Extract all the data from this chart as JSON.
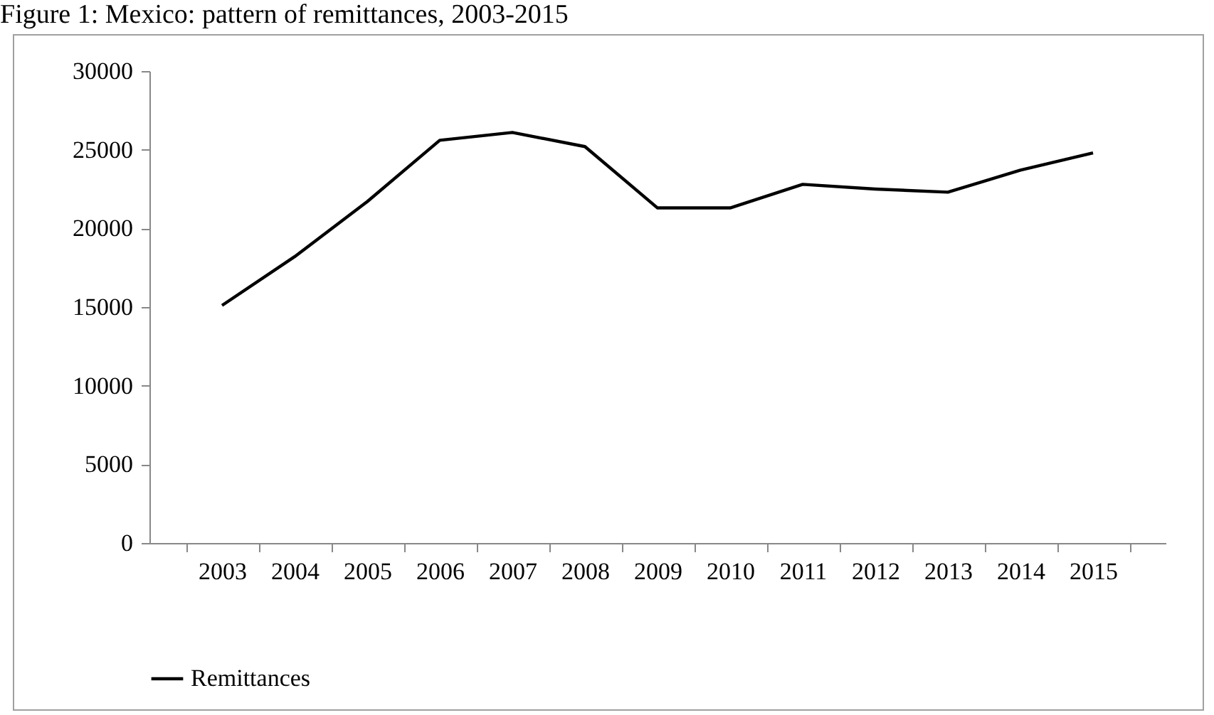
{
  "chart_data": {
    "type": "line",
    "title": "Figure 1: Mexico: pattern of remittances, 2003-2015",
    "categories": [
      "2003",
      "2004",
      "2005",
      "2006",
      "2007",
      "2008",
      "2009",
      "2010",
      "2011",
      "2012",
      "2013",
      "2014",
      "2015"
    ],
    "series": [
      {
        "name": "Remittances",
        "color": "#000000",
        "values": [
          15100,
          18200,
          21700,
          25600,
          26100,
          25200,
          21300,
          21300,
          22800,
          22500,
          22300,
          23700,
          24800
        ]
      }
    ],
    "ylim": [
      0,
      30000
    ],
    "yticks": [
      0,
      5000,
      10000,
      15000,
      20000,
      25000,
      30000
    ],
    "grid": false,
    "legend": "bottom",
    "marker": "none",
    "line_style": "solid"
  }
}
